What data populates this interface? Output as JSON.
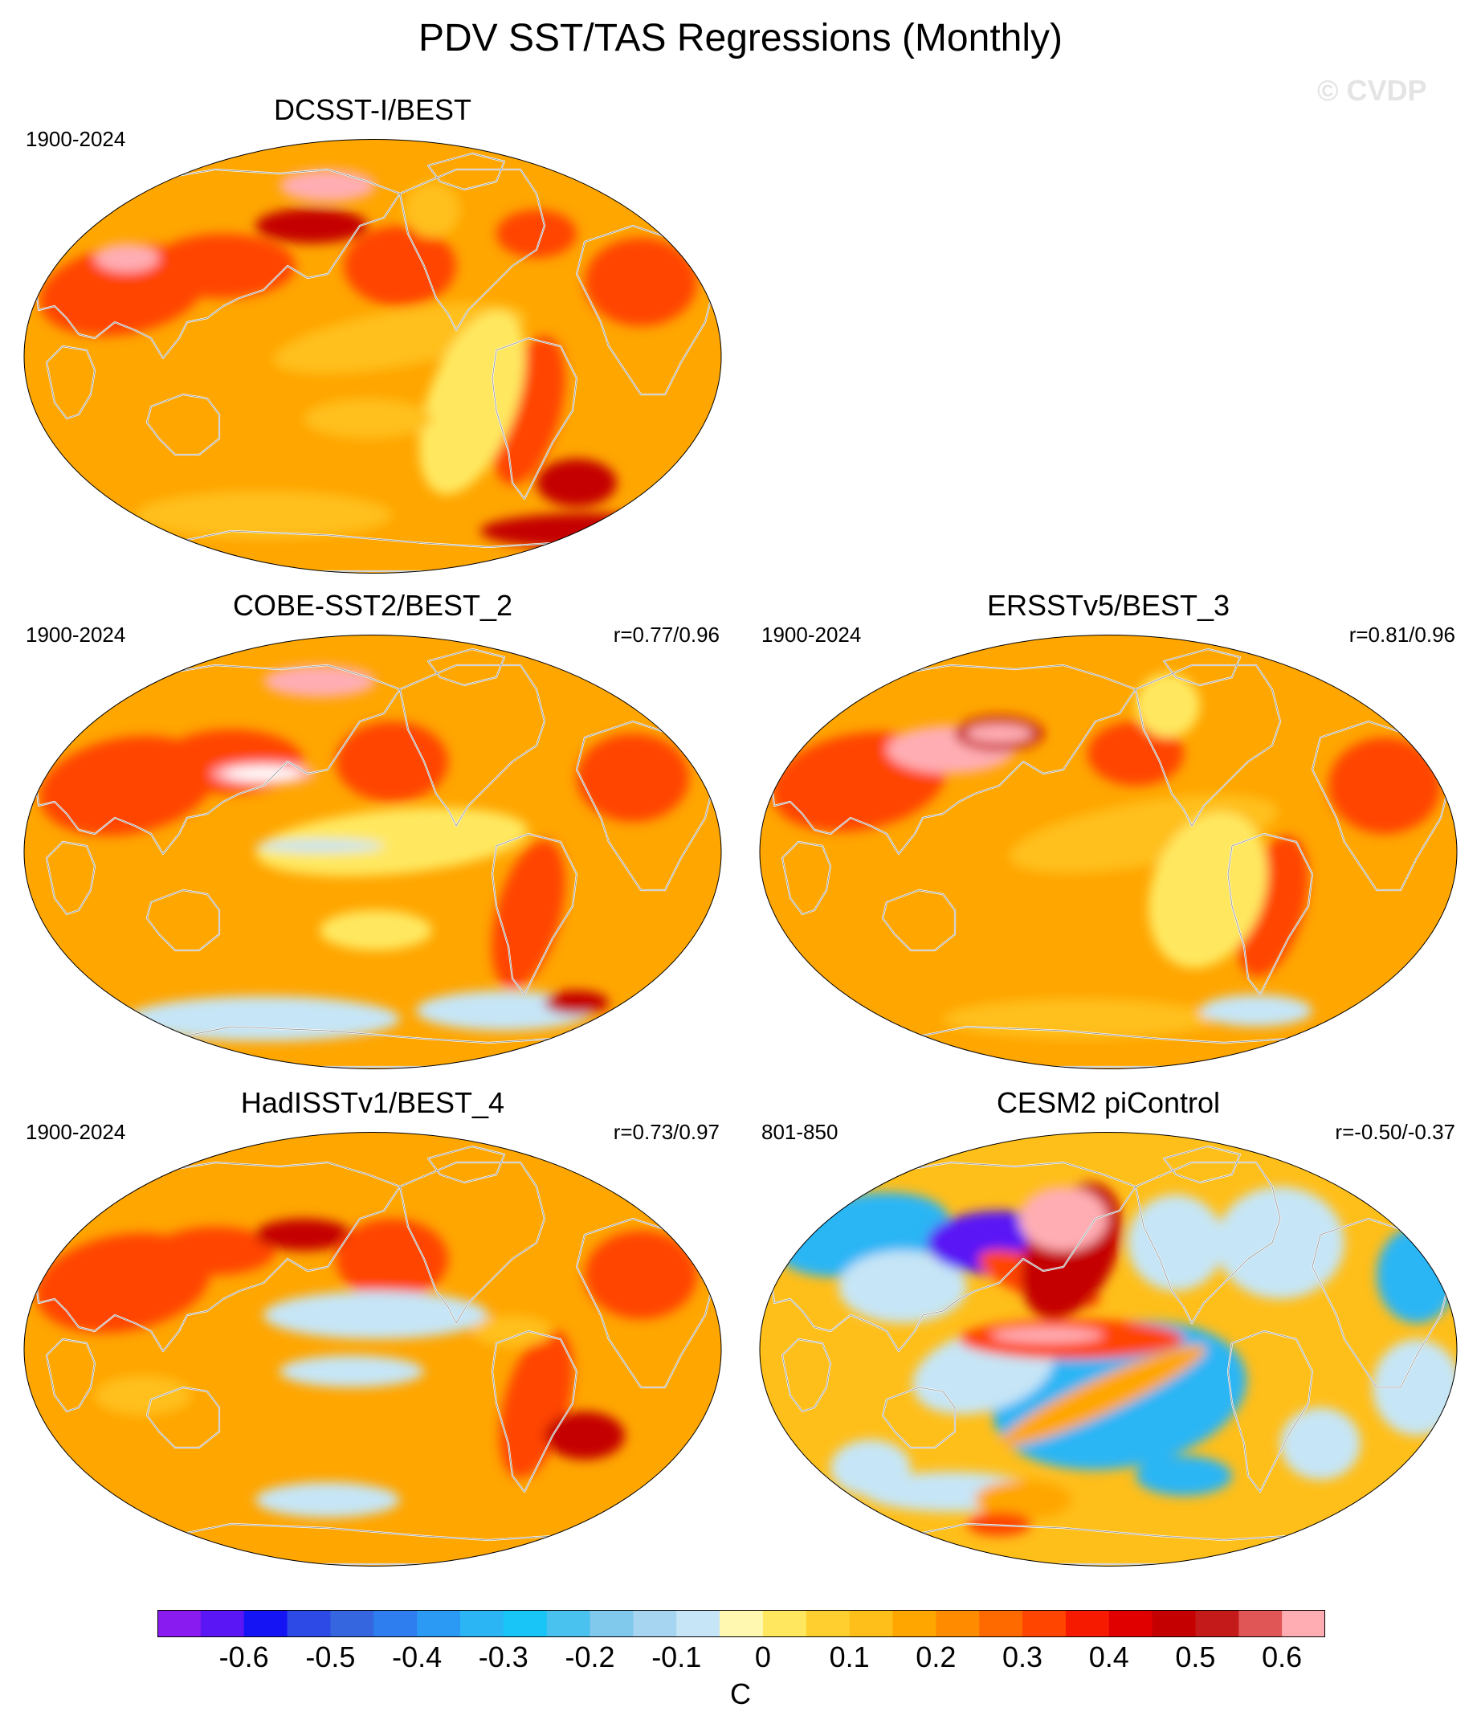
{
  "figure_title": "PDV SST/TAS Regressions (Monthly)",
  "copyright": "© CVDP",
  "panels": [
    {
      "title": "DCSST-I/BEST",
      "period": "1900-2024",
      "corr": "",
      "pattern": "obs_warm",
      "clip": "poly"
    },
    {
      "title": "COBE-SST2/BEST_2",
      "period": "1900-2024",
      "corr": "r=0.77/0.96",
      "pattern": "obs_cobe",
      "clip": "poly"
    },
    {
      "title": "ERSSTv5/BEST_3",
      "period": "1900-2024",
      "corr": "r=0.81/0.96",
      "pattern": "obs_ersst",
      "clip": "ellipse"
    },
    {
      "title": "HadISSTv1/BEST_4",
      "period": "1900-2024",
      "corr": "r=0.73/0.97",
      "pattern": "obs_had",
      "clip": "poly"
    },
    {
      "title": "CESM2 piControl",
      "period": "801-850",
      "corr": "r=-0.50/-0.37",
      "pattern": "model_cesm2",
      "clip": "poly"
    }
  ],
  "colorbar": {
    "units": "C",
    "ticks": [
      "-0.6",
      "-0.5",
      "-0.4",
      "-0.3",
      "-0.2",
      "-0.1",
      "0",
      "0.1",
      "0.2",
      "0.3",
      "0.4",
      "0.5",
      "0.6"
    ],
    "colors": [
      "#8a1bf0",
      "#5a16f5",
      "#1414f5",
      "#2d4ae6",
      "#3566e0",
      "#2e7ef0",
      "#2b9af5",
      "#2bb5f5",
      "#19c4f7",
      "#4ac2f0",
      "#80c8ec",
      "#a5d5f0",
      "#c6e5f6",
      "#fff8b0",
      "#ffe860",
      "#ffcf30",
      "#ffbf1a",
      "#ffa600",
      "#ff8c00",
      "#ff6a00",
      "#ff4500",
      "#f51a00",
      "#e00000",
      "#c40000",
      "#c41a1a",
      "#e05555",
      "#ffadb3"
    ]
  }
}
